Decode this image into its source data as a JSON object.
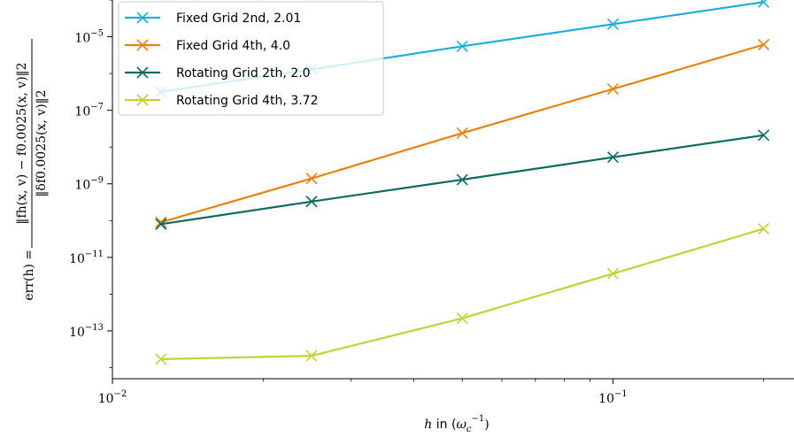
{
  "chart_data": {
    "type": "line",
    "xscale": "log",
    "yscale": "log",
    "xlim": [
      0.01,
      0.23
    ],
    "ylim": [
      5e-15,
      0.0001
    ],
    "grid": false,
    "legend_position": "top-left",
    "xlabel_text": "h in (ωc⁻¹)",
    "ylabel_text": "err(h) = ‖fh(x, v) − f0.0025(x, v)‖2 / ‖δf0.0025(x, v)‖2",
    "x": [
      0.0125,
      0.025,
      0.05,
      0.1,
      0.2
    ],
    "series": [
      {
        "name": "Fixed Grid 2nd, 2.01",
        "color": "#1aaee0",
        "values": [
          3.2e-07,
          1.3e-06,
          5.5e-06,
          2.2e-05,
          8.8e-05
        ]
      },
      {
        "name": "Fixed Grid 4th, 4.0",
        "color": "#e8820e",
        "values": [
          9e-11,
          1.4e-09,
          2.4e-08,
          3.8e-07,
          6.1e-06
        ]
      },
      {
        "name": "Rotating Grid 2th, 2.0",
        "color": "#0b6b5f",
        "values": [
          8e-11,
          3.3e-10,
          1.3e-09,
          5.3e-09,
          2.1e-08
        ]
      },
      {
        "name": "Rotating Grid 4th, 3.72",
        "color": "#c3d232",
        "values": [
          1.7e-14,
          2.1e-14,
          2.2e-13,
          3.6e-12,
          6e-11
        ]
      }
    ],
    "x_ticks": [
      {
        "value": 0.01,
        "base": "10",
        "exp": "−2"
      },
      {
        "value": 0.1,
        "base": "10",
        "exp": "−1"
      }
    ],
    "y_ticks": [
      {
        "value": 1e-05,
        "base": "10",
        "exp": "−5"
      },
      {
        "value": 1e-07,
        "base": "10",
        "exp": "−7"
      },
      {
        "value": 1e-09,
        "base": "10",
        "exp": "−9"
      },
      {
        "value": 1e-11,
        "base": "10",
        "exp": "−11"
      },
      {
        "value": 1e-13,
        "base": "10",
        "exp": "−13"
      }
    ],
    "xlabel": {
      "h": "h",
      "in": " in (",
      "omega": "ω",
      "c": "c",
      "exp": "−1",
      "close": ")"
    },
    "ylabel": {
      "lhs": "err(h) = ",
      "num": "‖fh(x, v) − f0.0025(x, v)‖2",
      "den": "‖δf0.0025(x, v)‖2"
    }
  }
}
